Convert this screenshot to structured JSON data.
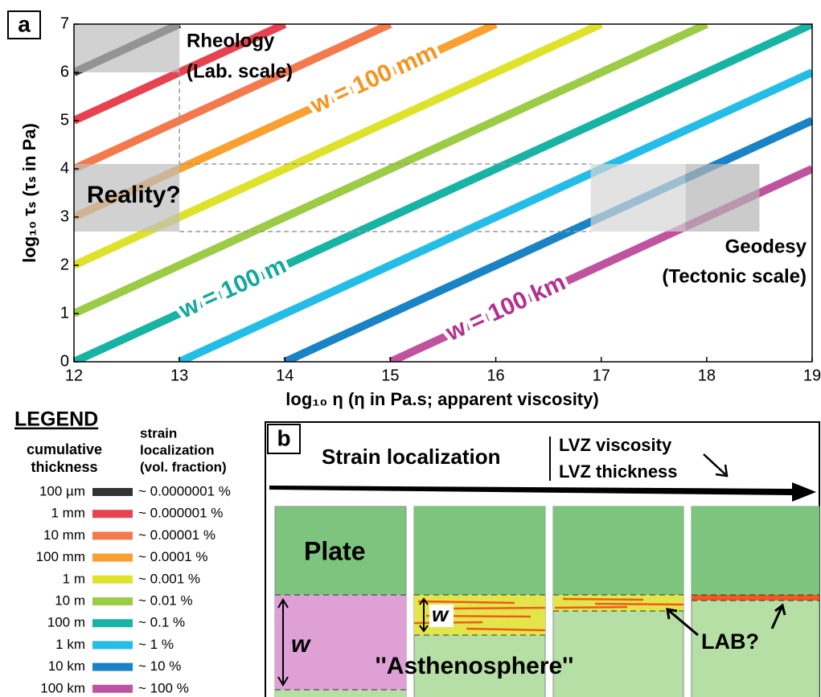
{
  "chart_data": {
    "type": "line",
    "panel_label": "a",
    "x_label": "log₁₀ η  (η in Pa.s; apparent viscosity)",
    "y_label": "log₁₀ τₛ  (τₛ in Pa)",
    "xlim": [
      12,
      19
    ],
    "ylim": [
      0,
      7
    ],
    "xticks": [
      12,
      13,
      14,
      15,
      16,
      17,
      18,
      19
    ],
    "yticks": [
      0,
      1,
      2,
      3,
      4,
      5,
      6,
      7
    ],
    "series": [
      {
        "name": "100 µm",
        "fraction": "~ 0.0000001 %",
        "color": "#333333",
        "x": [
          12,
          13
        ],
        "values": [
          6,
          7
        ]
      },
      {
        "name": "1 mm",
        "fraction": "~ 0.000001 %",
        "color": "#e8414f",
        "x": [
          12,
          14
        ],
        "values": [
          5,
          7
        ]
      },
      {
        "name": "10 mm",
        "fraction": "~ 0.00001 %",
        "color": "#f47a4e",
        "x": [
          12,
          15
        ],
        "values": [
          4,
          7
        ]
      },
      {
        "name": "100 mm",
        "fraction": "~ 0.0001 %",
        "color": "#f9a030",
        "x": [
          12,
          16
        ],
        "values": [
          3,
          7
        ]
      },
      {
        "name": "1 m",
        "fraction": "~ 0.001 %",
        "color": "#dfe22a",
        "x": [
          12,
          17
        ],
        "values": [
          2,
          7
        ]
      },
      {
        "name": "10 m",
        "fraction": "~ 0.01 %",
        "color": "#9ccb46",
        "x": [
          12,
          18
        ],
        "values": [
          1,
          7
        ]
      },
      {
        "name": "100 m",
        "fraction": "~ 0.1 %",
        "color": "#17b3a4",
        "x": [
          12,
          19
        ],
        "values": [
          0,
          7
        ]
      },
      {
        "name": "1 km",
        "fraction": "~ 1 %",
        "color": "#24bde8",
        "x": [
          13,
          19
        ],
        "values": [
          0,
          6
        ]
      },
      {
        "name": "10 km",
        "fraction": "~ 10 %",
        "color": "#1a83c5",
        "x": [
          14,
          19
        ],
        "values": [
          0,
          5
        ]
      },
      {
        "name": "100 km",
        "fraction": "~ 100 %",
        "color": "#c0539f",
        "x": [
          15,
          19
        ],
        "values": [
          0,
          4
        ]
      }
    ],
    "line_labels": [
      {
        "text": "w = 100 mm",
        "color": "#f7931e"
      },
      {
        "text": "w = 100 m",
        "color": "#13a89e"
      },
      {
        "text": "w = 100 km",
        "color": "#b2318e"
      }
    ],
    "regions": [
      {
        "label": [
          "Rheology",
          "(Lab. scale)"
        ],
        "x": [
          12,
          13
        ],
        "y": [
          6,
          7
        ],
        "color": "#bdbdbd"
      },
      {
        "label": [
          "Reality?"
        ],
        "x": [
          12,
          13
        ],
        "y": [
          2.7,
          4.1
        ],
        "color": "#bdbdbd"
      },
      {
        "label": [
          "Geodesy",
          "(Tectonic scale)"
        ],
        "x": [
          16.9,
          17.8
        ],
        "y": [
          2.7,
          4.1
        ],
        "color": "#d6d6d6"
      },
      {
        "x": [
          17.8,
          18.5
        ],
        "y": [
          2.7,
          4.1
        ],
        "color": "#b5b5b5"
      }
    ],
    "legend": {
      "title": "LEGEND",
      "headers": [
        [
          "cumulative",
          "thickness"
        ],
        [
          "strain",
          "localization",
          "(vol. fraction)"
        ]
      ]
    }
  },
  "diagram": {
    "panel_label": "b",
    "title": "Strain localization",
    "trend": [
      "LVZ viscosity",
      "LVZ thickness"
    ],
    "plate": "Plate",
    "width_symbol": [
      "w",
      "w"
    ],
    "asthenosphere": "''Asthenosphere''",
    "lab": "LAB?"
  }
}
